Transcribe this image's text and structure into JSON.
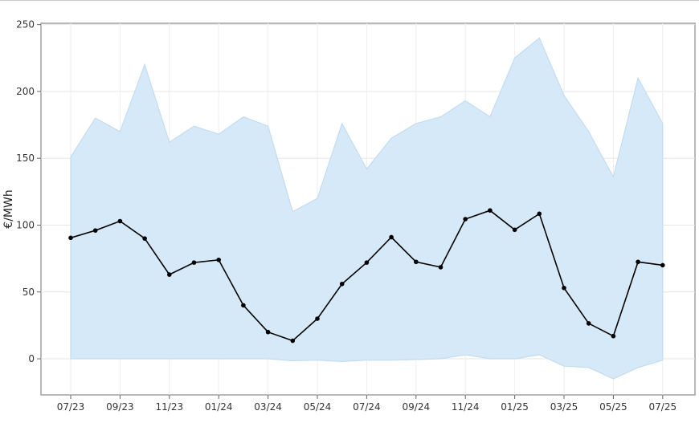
{
  "chart_data": {
    "type": "line",
    "title": "",
    "xlabel": "",
    "ylabel": "€/MWh",
    "ylim": [
      -27,
      251
    ],
    "yticks": [
      0,
      50,
      100,
      150,
      200,
      250
    ],
    "x": [
      "07/23",
      "08/23",
      "09/23",
      "10/23",
      "11/23",
      "12/23",
      "01/24",
      "02/24",
      "03/24",
      "04/24",
      "05/24",
      "06/24",
      "07/24",
      "08/24",
      "09/24",
      "10/24",
      "11/24",
      "12/24",
      "01/25",
      "02/25",
      "03/25",
      "04/25",
      "05/25",
      "06/25",
      "07/25"
    ],
    "xtick_labels": [
      "07/23",
      "09/23",
      "11/23",
      "01/24",
      "03/24",
      "05/24",
      "07/24",
      "09/24",
      "11/24",
      "01/25",
      "03/25",
      "05/25",
      "07/25"
    ],
    "series": [
      {
        "type": "line",
        "values": [
          90.5,
          96,
          103,
          90,
          63,
          72,
          74,
          40,
          20,
          13.5,
          30,
          56,
          72,
          91,
          72.5,
          68.5,
          104.5,
          111,
          96.5,
          108.5,
          53,
          26.5,
          17,
          72.5,
          70
        ],
        "color": "#000000"
      },
      {
        "type": "range",
        "upper": [
          151,
          180,
          170,
          220,
          162,
          174,
          168,
          181,
          174,
          110,
          120,
          176,
          142,
          165,
          176,
          181,
          193,
          181,
          225,
          240,
          197,
          170,
          136,
          210,
          176
        ],
        "lower": [
          0,
          0,
          0,
          0,
          0,
          0,
          0,
          0,
          0,
          -1.5,
          -1,
          -2,
          -1,
          -1,
          -0.5,
          0,
          3,
          0,
          0,
          3,
          -5.5,
          -6.5,
          -15,
          -6.5,
          -1
        ],
        "color": "#d6e9f8"
      }
    ],
    "grid": true,
    "legend": "none"
  }
}
